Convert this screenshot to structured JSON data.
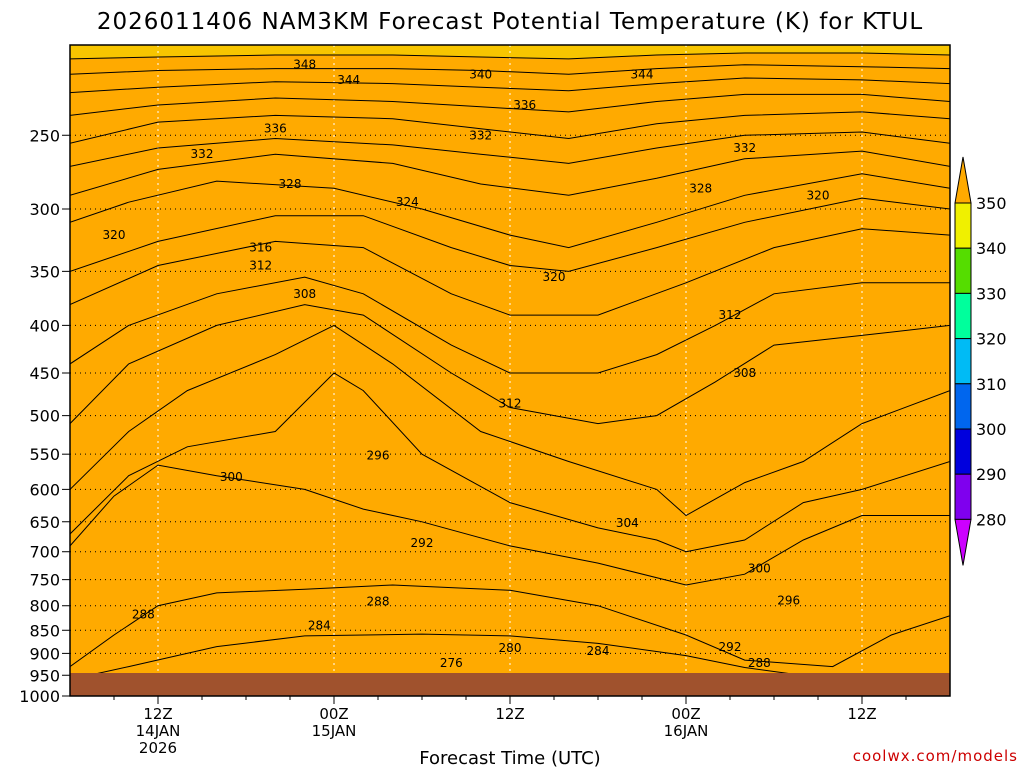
{
  "page": {
    "title": "2026011406 NAM3KM Forecast Potential Temperature (K) for KTUL",
    "credit": "coolwx.com/models"
  },
  "chart_data": {
    "type": "contour",
    "title": "2026011406 NAM3KM Forecast Potential Temperature (K) for KTUL",
    "xlabel": "Forecast Time (UTC)",
    "ylabel": "",
    "x_unit": "hours from 2026-01-14 06Z",
    "xlim": [
      0,
      60
    ],
    "y_axis_scale": "log-pressure (hPa), inverted",
    "ylim": [
      1000,
      200
    ],
    "y_ticks": [
      250,
      300,
      350,
      400,
      450,
      500,
      550,
      600,
      650,
      700,
      750,
      800,
      850,
      900,
      950,
      1000
    ],
    "x_ticks": [
      {
        "hour": 6,
        "line1": "12Z",
        "line2": "14JAN",
        "line3": "2026"
      },
      {
        "hour": 18,
        "line1": "00Z",
        "line2": "15JAN",
        "line3": ""
      },
      {
        "hour": 30,
        "line1": "12Z",
        "line2": "",
        "line3": ""
      },
      {
        "hour": 42,
        "line1": "00Z",
        "line2": "16JAN",
        "line3": ""
      },
      {
        "hour": 54,
        "line1": "12Z",
        "line2": "",
        "line3": ""
      }
    ],
    "grid": true,
    "colorbar": {
      "placement": "right",
      "levels": [
        280,
        290,
        300,
        310,
        320,
        330,
        340,
        350
      ],
      "labels": [
        "280",
        "290",
        "300",
        "310",
        "320",
        "330",
        "340",
        "350"
      ],
      "colors": [
        "#cc00ff",
        "#7f00ee",
        "#0000dd",
        "#0066ee",
        "#00bbf5",
        "#00ff9c",
        "#55dd00",
        "#f0f000",
        "#ffaa00"
      ]
    },
    "bands": [
      {
        "lower": 270,
        "upper": 280,
        "color": "#cc00ff"
      },
      {
        "lower": 280,
        "upper": 290,
        "color": "#7f00ee"
      },
      {
        "lower": 290,
        "upper": 300,
        "color": "#0000dd"
      },
      {
        "lower": 300,
        "upper": 310,
        "color": "#0066ee"
      },
      {
        "lower": 310,
        "upper": 320,
        "color": "#00bbf5"
      },
      {
        "lower": 320,
        "upper": 330,
        "color": "#00ff9c"
      },
      {
        "lower": 330,
        "upper": 340,
        "color": "#55dd00"
      },
      {
        "lower": 340,
        "upper": 350,
        "color": "#f0f000"
      },
      {
        "lower": 350,
        "upper": 360,
        "color": "#ffaa00"
      }
    ],
    "isolines": [
      {
        "value": 280,
        "points": [
          [
            0,
            1000
          ],
          [
            14,
            1000
          ],
          [
            18,
            985
          ],
          [
            24,
            982
          ],
          [
            30,
            982
          ],
          [
            36,
            985
          ],
          [
            38,
            1000
          ],
          [
            60,
            1000
          ]
        ]
      },
      {
        "value": 284,
        "points": [
          [
            0,
            960
          ],
          [
            4,
            930
          ],
          [
            10,
            885
          ],
          [
            16,
            862
          ],
          [
            24,
            858
          ],
          [
            30,
            862
          ],
          [
            36,
            878
          ],
          [
            42,
            905
          ],
          [
            46,
            932
          ],
          [
            52,
            960
          ],
          [
            56,
            978
          ],
          [
            60,
            975
          ]
        ]
      },
      {
        "value": 288,
        "points": [
          [
            0,
            930
          ],
          [
            3,
            860
          ],
          [
            6,
            800
          ],
          [
            10,
            775
          ],
          [
            16,
            768
          ],
          [
            22,
            760
          ],
          [
            30,
            770
          ],
          [
            36,
            800
          ],
          [
            42,
            860
          ],
          [
            46,
            915
          ],
          [
            52,
            930
          ],
          [
            56,
            860
          ],
          [
            60,
            820
          ]
        ]
      },
      {
        "value": 292,
        "points": [
          [
            0,
            690
          ],
          [
            3,
            610
          ],
          [
            6,
            565
          ],
          [
            10,
            580
          ],
          [
            16,
            600
          ],
          [
            20,
            630
          ],
          [
            24,
            650
          ],
          [
            30,
            690
          ],
          [
            36,
            720
          ],
          [
            42,
            760
          ],
          [
            46,
            740
          ],
          [
            50,
            680
          ],
          [
            54,
            640
          ],
          [
            60,
            640
          ]
        ]
      },
      {
        "value": 296,
        "points": [
          [
            0,
            670
          ],
          [
            4,
            580
          ],
          [
            8,
            540
          ],
          [
            14,
            520
          ],
          [
            18,
            450
          ],
          [
            20,
            470
          ],
          [
            24,
            550
          ],
          [
            30,
            620
          ],
          [
            36,
            660
          ],
          [
            40,
            680
          ],
          [
            42,
            700
          ],
          [
            46,
            680
          ],
          [
            50,
            620
          ],
          [
            54,
            600
          ],
          [
            60,
            560
          ]
        ]
      },
      {
        "value": 300,
        "points": [
          [
            0,
            600
          ],
          [
            4,
            520
          ],
          [
            8,
            470
          ],
          [
            14,
            430
          ],
          [
            18,
            400
          ],
          [
            22,
            440
          ],
          [
            28,
            520
          ],
          [
            34,
            560
          ],
          [
            40,
            600
          ],
          [
            42,
            640
          ],
          [
            46,
            590
          ],
          [
            50,
            560
          ],
          [
            54,
            510
          ],
          [
            60,
            470
          ]
        ]
      },
      {
        "value": 304,
        "points": [
          [
            0,
            510
          ],
          [
            4,
            440
          ],
          [
            10,
            400
          ],
          [
            16,
            380
          ],
          [
            20,
            390
          ],
          [
            26,
            450
          ],
          [
            30,
            490
          ],
          [
            36,
            510
          ],
          [
            40,
            500
          ],
          [
            44,
            460
          ],
          [
            48,
            420
          ],
          [
            54,
            410
          ],
          [
            60,
            400
          ]
        ]
      },
      {
        "value": 308,
        "points": [
          [
            0,
            440
          ],
          [
            4,
            400
          ],
          [
            10,
            370
          ],
          [
            16,
            355
          ],
          [
            20,
            370
          ],
          [
            26,
            420
          ],
          [
            30,
            450
          ],
          [
            36,
            450
          ],
          [
            40,
            430
          ],
          [
            44,
            400
          ],
          [
            48,
            370
          ],
          [
            54,
            360
          ],
          [
            60,
            360
          ]
        ]
      },
      {
        "value": 312,
        "points": [
          [
            0,
            380
          ],
          [
            6,
            345
          ],
          [
            14,
            325
          ],
          [
            20,
            330
          ],
          [
            26,
            370
          ],
          [
            30,
            390
          ],
          [
            36,
            390
          ],
          [
            42,
            360
          ],
          [
            48,
            330
          ],
          [
            54,
            315
          ],
          [
            60,
            320
          ]
        ]
      },
      {
        "value": 316,
        "points": [
          [
            0,
            350
          ],
          [
            6,
            325
          ],
          [
            14,
            305
          ],
          [
            20,
            305
          ],
          [
            26,
            330
          ],
          [
            30,
            345
          ],
          [
            34,
            350
          ],
          [
            40,
            330
          ],
          [
            46,
            310
          ],
          [
            54,
            292
          ],
          [
            60,
            300
          ]
        ]
      },
      {
        "value": 320,
        "points": [
          [
            0,
            310
          ],
          [
            4,
            295
          ],
          [
            10,
            280
          ],
          [
            18,
            285
          ],
          [
            24,
            300
          ],
          [
            30,
            320
          ],
          [
            34,
            330
          ],
          [
            40,
            310
          ],
          [
            46,
            290
          ],
          [
            54,
            275
          ],
          [
            60,
            285
          ]
        ]
      },
      {
        "value": 324,
        "points": [
          [
            0,
            290
          ],
          [
            6,
            272
          ],
          [
            14,
            262
          ],
          [
            22,
            268
          ],
          [
            28,
            282
          ],
          [
            34,
            290
          ],
          [
            40,
            278
          ],
          [
            46,
            265
          ],
          [
            54,
            260
          ],
          [
            60,
            270
          ]
        ]
      },
      {
        "value": 328,
        "points": [
          [
            0,
            270
          ],
          [
            6,
            258
          ],
          [
            14,
            252
          ],
          [
            22,
            256
          ],
          [
            28,
            262
          ],
          [
            34,
            268
          ],
          [
            40,
            258
          ],
          [
            46,
            250
          ],
          [
            54,
            248
          ],
          [
            60,
            255
          ]
        ]
      },
      {
        "value": 332,
        "points": [
          [
            0,
            255
          ],
          [
            6,
            242
          ],
          [
            14,
            238
          ],
          [
            22,
            240
          ],
          [
            28,
            246
          ],
          [
            34,
            252
          ],
          [
            40,
            243
          ],
          [
            46,
            238
          ],
          [
            54,
            236
          ],
          [
            60,
            240
          ]
        ]
      },
      {
        "value": 336,
        "points": [
          [
            0,
            238
          ],
          [
            6,
            232
          ],
          [
            14,
            228
          ],
          [
            22,
            230
          ],
          [
            28,
            233
          ],
          [
            34,
            236
          ],
          [
            40,
            230
          ],
          [
            46,
            226
          ],
          [
            54,
            226
          ],
          [
            60,
            230
          ]
        ]
      },
      {
        "value": 340,
        "points": [
          [
            0,
            225
          ],
          [
            6,
            222
          ],
          [
            14,
            219
          ],
          [
            22,
            220
          ],
          [
            28,
            222
          ],
          [
            34,
            224
          ],
          [
            40,
            220
          ],
          [
            46,
            217
          ],
          [
            54,
            218
          ],
          [
            60,
            220
          ]
        ]
      },
      {
        "value": 344,
        "points": [
          [
            0,
            215
          ],
          [
            6,
            213
          ],
          [
            14,
            212
          ],
          [
            22,
            212
          ],
          [
            28,
            213
          ],
          [
            34,
            215
          ],
          [
            40,
            212
          ],
          [
            46,
            210
          ],
          [
            54,
            211
          ],
          [
            60,
            212
          ]
        ]
      },
      {
        "value": 348,
        "points": [
          [
            0,
            207
          ],
          [
            6,
            206
          ],
          [
            14,
            205
          ],
          [
            22,
            205
          ],
          [
            28,
            206
          ],
          [
            34,
            207
          ],
          [
            40,
            205
          ],
          [
            46,
            204
          ],
          [
            54,
            204
          ],
          [
            60,
            205
          ]
        ]
      }
    ],
    "contour_labels": [
      {
        "text": "348",
        "x": 16,
        "p": 210
      },
      {
        "text": "344",
        "x": 19,
        "p": 218
      },
      {
        "text": "340",
        "x": 28,
        "p": 215
      },
      {
        "text": "344",
        "x": 39,
        "p": 215
      },
      {
        "text": "336",
        "x": 31,
        "p": 232
      },
      {
        "text": "336",
        "x": 14,
        "p": 246
      },
      {
        "text": "332",
        "x": 28,
        "p": 250
      },
      {
        "text": "332",
        "x": 9,
        "p": 262
      },
      {
        "text": "332",
        "x": 46,
        "p": 258
      },
      {
        "text": "328",
        "x": 15,
        "p": 282
      },
      {
        "text": "328",
        "x": 43,
        "p": 285
      },
      {
        "text": "324",
        "x": 23,
        "p": 295
      },
      {
        "text": "320",
        "x": 51,
        "p": 290
      },
      {
        "text": "320",
        "x": 3,
        "p": 320
      },
      {
        "text": "316",
        "x": 13,
        "p": 330
      },
      {
        "text": "312",
        "x": 13,
        "p": 345
      },
      {
        "text": "320",
        "x": 33,
        "p": 355
      },
      {
        "text": "308",
        "x": 16,
        "p": 370
      },
      {
        "text": "312",
        "x": 45,
        "p": 390
      },
      {
        "text": "308",
        "x": 46,
        "p": 450
      },
      {
        "text": "312",
        "x": 30,
        "p": 485
      },
      {
        "text": "296",
        "x": 21,
        "p": 552
      },
      {
        "text": "300",
        "x": 11,
        "p": 582
      },
      {
        "text": "304",
        "x": 38,
        "p": 652
      },
      {
        "text": "292",
        "x": 24,
        "p": 685
      },
      {
        "text": "300",
        "x": 47,
        "p": 730
      },
      {
        "text": "288",
        "x": 21,
        "p": 792
      },
      {
        "text": "296",
        "x": 49,
        "p": 790
      },
      {
        "text": "288",
        "x": 5,
        "p": 818
      },
      {
        "text": "284",
        "x": 17,
        "p": 840
      },
      {
        "text": "280",
        "x": 30,
        "p": 888
      },
      {
        "text": "284",
        "x": 36,
        "p": 895
      },
      {
        "text": "292",
        "x": 45,
        "p": 886
      },
      {
        "text": "276",
        "x": 26,
        "p": 922
      },
      {
        "text": "288",
        "x": 47,
        "p": 922
      },
      {
        "text": "284",
        "x": 52,
        "p": 960
      },
      {
        "text": "280",
        "x": 54,
        "p": 968
      }
    ]
  }
}
